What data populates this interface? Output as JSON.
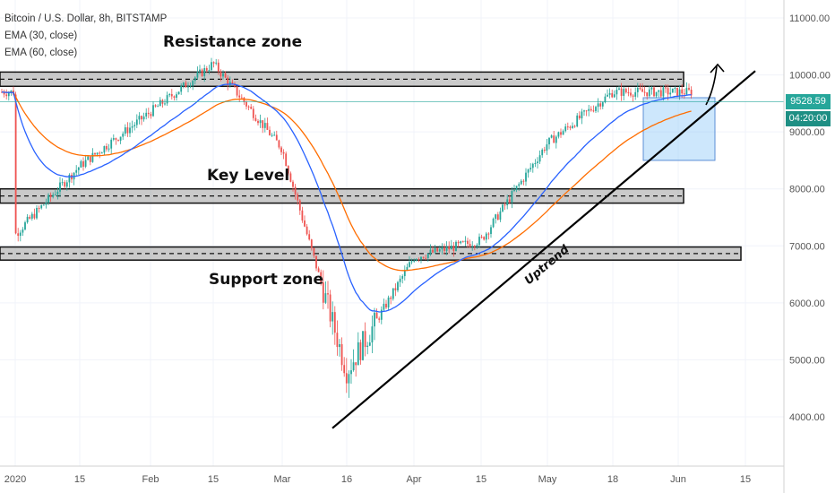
{
  "header": {
    "title": "Bitcoin / U.S. Dollar, 8h, BITSTAMP",
    "ema30": "EMA (30, close)",
    "ema60": "EMA (60, close)"
  },
  "annotations": {
    "resistance": "Resistance zone",
    "key_level": "Key Level",
    "support": "Support zone",
    "uptrend": "Uptrend"
  },
  "price_tags": {
    "last_price": "9528.59",
    "countdown": "04:20:00"
  },
  "colors": {
    "up": "#26a69a",
    "down": "#ef5350",
    "ema30": "#2962ff",
    "ema60": "#ff6d00",
    "zone_fill": "#9e9e9e",
    "box_fill": "#90caf9"
  },
  "chart_data": {
    "type": "candlestick",
    "x_ticks": [
      "2020",
      "15",
      "Feb",
      "15",
      "Mar",
      "16",
      "Apr",
      "15",
      "May",
      "18",
      "Jun",
      "15"
    ],
    "y_ticks": [
      "4000.00",
      "5000.00",
      "6000.00",
      "7000.00",
      "8000.00",
      "9000.00",
      "10000.00",
      "11000.00"
    ],
    "ylim": [
      3300,
      11300
    ],
    "last_price": 9528.59,
    "zones": [
      {
        "name": "Resistance zone",
        "low": 9800,
        "high": 10050
      },
      {
        "name": "Key Level",
        "low": 7750,
        "high": 8000
      },
      {
        "name": "Support zone",
        "low": 6750,
        "high": 6980
      }
    ],
    "price_path": [
      {
        "x": "2020",
        "y": 7200
      },
      {
        "x": "15",
        "y": 8400
      },
      {
        "x": "Feb",
        "y": 9350
      },
      {
        "x": "15",
        "y": 10200
      },
      {
        "x": "Mar",
        "y": 8700
      },
      {
        "x": "16",
        "y": 4800
      },
      {
        "x": "Apr",
        "y": 6800
      },
      {
        "x": "15",
        "y": 7100
      },
      {
        "x": "May",
        "y": 8800
      },
      {
        "x": "18",
        "y": 9700
      },
      {
        "x": "Jun",
        "y": 9700
      }
    ],
    "uptrend_line": [
      {
        "x": "16",
        "y": 3800
      },
      {
        "x": "15",
        "y": 10100
      }
    ],
    "consolidation_box": {
      "x_start": "18",
      "x_end": "Jun",
      "low": 8500,
      "high": 9600
    }
  }
}
